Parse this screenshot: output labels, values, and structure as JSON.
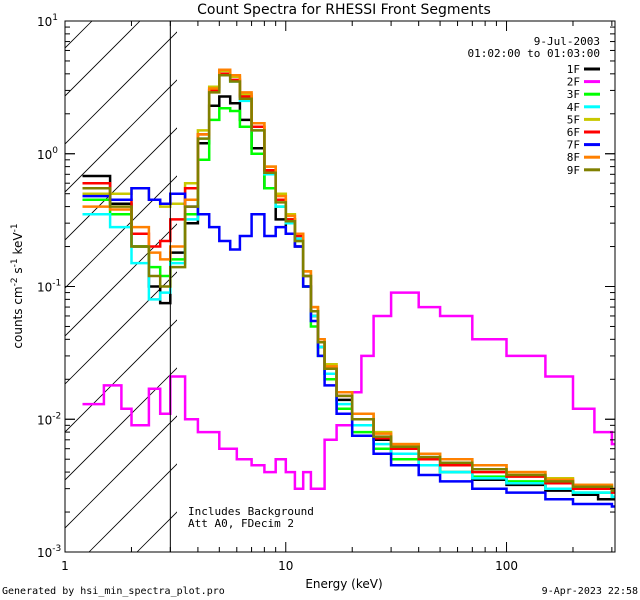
{
  "chart_data": {
    "type": "line",
    "title": "Count Spectra for RHESSI Front Segments",
    "xlabel": "Energy (keV)",
    "ylabel": "counts cm-2 s-1 keV-1",
    "xscale": "log",
    "yscale": "log",
    "xlim": [
      1,
      310
    ],
    "ylim": [
      0.001,
      10
    ],
    "xticks": [
      {
        "value": 1,
        "label": "1"
      },
      {
        "value": 10,
        "label": "10"
      },
      {
        "value": 100,
        "label": "100"
      }
    ],
    "yticks": [
      {
        "value": 10,
        "base": "10",
        "exp": "1"
      },
      {
        "value": 1,
        "base": "10",
        "exp": "0"
      },
      {
        "value": 0.1,
        "base": "10",
        "exp": "-1"
      },
      {
        "value": 0.01,
        "base": "10",
        "exp": "-2"
      },
      {
        "value": 0.001,
        "base": "10",
        "exp": "-3"
      }
    ],
    "date": "9-Jul-2003",
    "time_range": "01:02:00 to 01:03:00",
    "annotations": [
      "Includes Background",
      "Att A0, FDecim 2"
    ],
    "shaded_region_keV": [
      1,
      3
    ],
    "vertical_line_keV": 3,
    "series": [
      {
        "name": "1F",
        "color": "#000000",
        "points": [
          [
            1.2,
            0.68
          ],
          [
            1.6,
            0.42
          ],
          [
            2.0,
            0.2
          ],
          [
            2.4,
            0.1
          ],
          [
            2.7,
            0.075
          ],
          [
            3.0,
            0.18
          ],
          [
            3.5,
            0.3
          ],
          [
            4.0,
            1.2
          ],
          [
            4.5,
            2.3
          ],
          [
            5.0,
            2.7
          ],
          [
            5.6,
            2.4
          ],
          [
            6.2,
            1.8
          ],
          [
            7.0,
            1.1
          ],
          [
            8.0,
            0.55
          ],
          [
            9.0,
            0.32
          ],
          [
            10,
            0.25
          ],
          [
            11,
            0.2
          ],
          [
            12,
            0.1
          ],
          [
            13,
            0.06
          ],
          [
            14,
            0.035
          ],
          [
            15,
            0.022
          ],
          [
            17,
            0.014
          ],
          [
            20,
            0.01
          ],
          [
            25,
            0.007
          ],
          [
            30,
            0.0055
          ],
          [
            40,
            0.0045
          ],
          [
            50,
            0.004
          ],
          [
            70,
            0.0035
          ],
          [
            100,
            0.0032
          ],
          [
            150,
            0.0029
          ],
          [
            200,
            0.0027
          ],
          [
            260,
            0.0025
          ],
          [
            300,
            0.0025
          ]
        ]
      },
      {
        "name": "2F",
        "color": "#ff00ff",
        "points": [
          [
            1.2,
            0.013
          ],
          [
            1.5,
            0.018
          ],
          [
            1.8,
            0.012
          ],
          [
            2.0,
            0.009
          ],
          [
            2.4,
            0.017
          ],
          [
            2.7,
            0.011
          ],
          [
            3.0,
            0.021
          ],
          [
            3.5,
            0.01
          ],
          [
            4.0,
            0.008
          ],
          [
            5.0,
            0.006
          ],
          [
            6.0,
            0.005
          ],
          [
            7.0,
            0.0045
          ],
          [
            8.0,
            0.004
          ],
          [
            9.0,
            0.005
          ],
          [
            10,
            0.004
          ],
          [
            11,
            0.003
          ],
          [
            12,
            0.004
          ],
          [
            13,
            0.003
          ],
          [
            15,
            0.007
          ],
          [
            17,
            0.009
          ],
          [
            20,
            0.016
          ],
          [
            22,
            0.03
          ],
          [
            25,
            0.06
          ],
          [
            30,
            0.09
          ],
          [
            40,
            0.07
          ],
          [
            50,
            0.06
          ],
          [
            70,
            0.04
          ],
          [
            100,
            0.03
          ],
          [
            150,
            0.021
          ],
          [
            200,
            0.012
          ],
          [
            250,
            0.008
          ],
          [
            300,
            0.0065
          ]
        ]
      },
      {
        "name": "3F",
        "color": "#00ff00",
        "points": [
          [
            1.2,
            0.45
          ],
          [
            1.6,
            0.35
          ],
          [
            2.0,
            0.2
          ],
          [
            2.4,
            0.14
          ],
          [
            2.7,
            0.12
          ],
          [
            3.0,
            0.16
          ],
          [
            3.5,
            0.35
          ],
          [
            4.0,
            0.9
          ],
          [
            4.5,
            1.8
          ],
          [
            5.0,
            2.2
          ],
          [
            5.6,
            2.1
          ],
          [
            6.2,
            1.6
          ],
          [
            7.0,
            1.0
          ],
          [
            8.0,
            0.55
          ],
          [
            9.0,
            0.4
          ],
          [
            10,
            0.32
          ],
          [
            11,
            0.22
          ],
          [
            12,
            0.1
          ],
          [
            13,
            0.05
          ],
          [
            14,
            0.03
          ],
          [
            15,
            0.02
          ],
          [
            17,
            0.012
          ],
          [
            20,
            0.008
          ],
          [
            25,
            0.006
          ],
          [
            30,
            0.005
          ],
          [
            40,
            0.0045
          ],
          [
            50,
            0.004
          ],
          [
            70,
            0.0037
          ],
          [
            100,
            0.0034
          ],
          [
            150,
            0.003
          ],
          [
            200,
            0.0028
          ],
          [
            300,
            0.0026
          ]
        ]
      },
      {
        "name": "4F",
        "color": "#00ffff",
        "points": [
          [
            1.2,
            0.35
          ],
          [
            1.6,
            0.28
          ],
          [
            2.0,
            0.15
          ],
          [
            2.4,
            0.08
          ],
          [
            2.7,
            0.09
          ],
          [
            3.0,
            0.15
          ],
          [
            3.5,
            0.32
          ],
          [
            4.0,
            1.3
          ],
          [
            4.5,
            3.0
          ],
          [
            5.0,
            4.0
          ],
          [
            5.6,
            3.5
          ],
          [
            6.2,
            2.5
          ],
          [
            7.0,
            1.5
          ],
          [
            8.0,
            0.7
          ],
          [
            9.0,
            0.4
          ],
          [
            10,
            0.3
          ],
          [
            11,
            0.23
          ],
          [
            12,
            0.12
          ],
          [
            13,
            0.06
          ],
          [
            14,
            0.035
          ],
          [
            15,
            0.022
          ],
          [
            17,
            0.013
          ],
          [
            20,
            0.009
          ],
          [
            25,
            0.0065
          ],
          [
            30,
            0.0055
          ],
          [
            40,
            0.0045
          ],
          [
            50,
            0.004
          ],
          [
            70,
            0.0036
          ],
          [
            100,
            0.0033
          ],
          [
            150,
            0.003
          ],
          [
            200,
            0.0028
          ],
          [
            300,
            0.0026
          ]
        ]
      },
      {
        "name": "5F",
        "color": "#c8c800",
        "points": [
          [
            1.2,
            0.5
          ],
          [
            1.6,
            0.5
          ],
          [
            2.0,
            0.55
          ],
          [
            2.4,
            0.45
          ],
          [
            2.7,
            0.4
          ],
          [
            3.0,
            0.42
          ],
          [
            3.5,
            0.6
          ],
          [
            4.0,
            1.5
          ],
          [
            4.5,
            3.2
          ],
          [
            5.0,
            4.2
          ],
          [
            5.6,
            3.8
          ],
          [
            6.2,
            2.8
          ],
          [
            7.0,
            1.7
          ],
          [
            8.0,
            0.8
          ],
          [
            9.0,
            0.5
          ],
          [
            10,
            0.35
          ],
          [
            11,
            0.25
          ],
          [
            12,
            0.13
          ],
          [
            13,
            0.07
          ],
          [
            14,
            0.04
          ],
          [
            15,
            0.026
          ],
          [
            17,
            0.016
          ],
          [
            20,
            0.011
          ],
          [
            25,
            0.008
          ],
          [
            30,
            0.0065
          ],
          [
            40,
            0.0055
          ],
          [
            50,
            0.005
          ],
          [
            70,
            0.0045
          ],
          [
            100,
            0.004
          ],
          [
            150,
            0.0036
          ],
          [
            200,
            0.0032
          ],
          [
            300,
            0.003
          ]
        ]
      },
      {
        "name": "6F",
        "color": "#ff0000",
        "points": [
          [
            1.2,
            0.6
          ],
          [
            1.6,
            0.45
          ],
          [
            2.0,
            0.25
          ],
          [
            2.4,
            0.2
          ],
          [
            2.7,
            0.22
          ],
          [
            3.0,
            0.32
          ],
          [
            3.5,
            0.55
          ],
          [
            4.0,
            1.4
          ],
          [
            4.5,
            3.0
          ],
          [
            5.0,
            4.0
          ],
          [
            5.6,
            3.6
          ],
          [
            6.2,
            2.7
          ],
          [
            7.0,
            1.6
          ],
          [
            8.0,
            0.75
          ],
          [
            9.0,
            0.45
          ],
          [
            10,
            0.32
          ],
          [
            11,
            0.24
          ],
          [
            12,
            0.12
          ],
          [
            13,
            0.065
          ],
          [
            14,
            0.038
          ],
          [
            15,
            0.024
          ],
          [
            17,
            0.015
          ],
          [
            20,
            0.01
          ],
          [
            25,
            0.0072
          ],
          [
            30,
            0.006
          ],
          [
            40,
            0.005
          ],
          [
            50,
            0.0045
          ],
          [
            70,
            0.004
          ],
          [
            100,
            0.0037
          ],
          [
            150,
            0.0033
          ],
          [
            200,
            0.003
          ],
          [
            300,
            0.0028
          ]
        ]
      },
      {
        "name": "7F",
        "color": "#0000ff",
        "points": [
          [
            1.2,
            0.48
          ],
          [
            1.6,
            0.45
          ],
          [
            2.0,
            0.55
          ],
          [
            2.4,
            0.45
          ],
          [
            2.7,
            0.42
          ],
          [
            3.0,
            0.5
          ],
          [
            3.5,
            0.4
          ],
          [
            4.0,
            0.35
          ],
          [
            4.5,
            0.28
          ],
          [
            5.0,
            0.22
          ],
          [
            5.6,
            0.19
          ],
          [
            6.2,
            0.24
          ],
          [
            7.0,
            0.35
          ],
          [
            8.0,
            0.24
          ],
          [
            9.0,
            0.28
          ],
          [
            10,
            0.25
          ],
          [
            11,
            0.2
          ],
          [
            12,
            0.1
          ],
          [
            13,
            0.055
          ],
          [
            14,
            0.03
          ],
          [
            15,
            0.018
          ],
          [
            17,
            0.011
          ],
          [
            20,
            0.0075
          ],
          [
            25,
            0.0055
          ],
          [
            30,
            0.0045
          ],
          [
            40,
            0.0038
          ],
          [
            50,
            0.0034
          ],
          [
            70,
            0.003
          ],
          [
            100,
            0.0028
          ],
          [
            150,
            0.0025
          ],
          [
            200,
            0.0023
          ],
          [
            300,
            0.0022
          ]
        ]
      },
      {
        "name": "8F",
        "color": "#ff8000",
        "points": [
          [
            1.2,
            0.4
          ],
          [
            1.6,
            0.38
          ],
          [
            2.0,
            0.28
          ],
          [
            2.4,
            0.18
          ],
          [
            2.7,
            0.16
          ],
          [
            3.0,
            0.2
          ],
          [
            3.5,
            0.45
          ],
          [
            4.0,
            1.4
          ],
          [
            4.5,
            3.1
          ],
          [
            5.0,
            4.3
          ],
          [
            5.6,
            3.9
          ],
          [
            6.2,
            2.9
          ],
          [
            7.0,
            1.7
          ],
          [
            8.0,
            0.8
          ],
          [
            9.0,
            0.48
          ],
          [
            10,
            0.34
          ],
          [
            11,
            0.25
          ],
          [
            12,
            0.13
          ],
          [
            13,
            0.07
          ],
          [
            14,
            0.04
          ],
          [
            15,
            0.025
          ],
          [
            17,
            0.016
          ],
          [
            20,
            0.011
          ],
          [
            25,
            0.0078
          ],
          [
            30,
            0.0065
          ],
          [
            40,
            0.0055
          ],
          [
            50,
            0.005
          ],
          [
            70,
            0.0045
          ],
          [
            100,
            0.004
          ],
          [
            150,
            0.0035
          ],
          [
            200,
            0.0032
          ],
          [
            300,
            0.003
          ]
        ]
      },
      {
        "name": "9F",
        "color": "#808000",
        "points": [
          [
            1.2,
            0.55
          ],
          [
            1.6,
            0.4
          ],
          [
            2.0,
            0.2
          ],
          [
            2.4,
            0.12
          ],
          [
            2.7,
            0.1
          ],
          [
            3.0,
            0.14
          ],
          [
            3.5,
            0.4
          ],
          [
            4.0,
            1.3
          ],
          [
            4.5,
            2.9
          ],
          [
            5.0,
            3.9
          ],
          [
            5.6,
            3.5
          ],
          [
            6.2,
            2.6
          ],
          [
            7.0,
            1.5
          ],
          [
            8.0,
            0.72
          ],
          [
            9.0,
            0.43
          ],
          [
            10,
            0.31
          ],
          [
            11,
            0.22
          ],
          [
            12,
            0.12
          ],
          [
            13,
            0.065
          ],
          [
            14,
            0.038
          ],
          [
            15,
            0.024
          ],
          [
            17,
            0.015
          ],
          [
            20,
            0.01
          ],
          [
            25,
            0.0074
          ],
          [
            30,
            0.0062
          ],
          [
            40,
            0.0052
          ],
          [
            50,
            0.0047
          ],
          [
            70,
            0.0042
          ],
          [
            100,
            0.0038
          ],
          [
            150,
            0.0034
          ],
          [
            200,
            0.0031
          ],
          [
            300,
            0.0029
          ]
        ]
      }
    ]
  },
  "footer": {
    "generated_by": "Generated by hsi_min_spectra_plot.pro",
    "timestamp": "9-Apr-2023 22:58"
  }
}
